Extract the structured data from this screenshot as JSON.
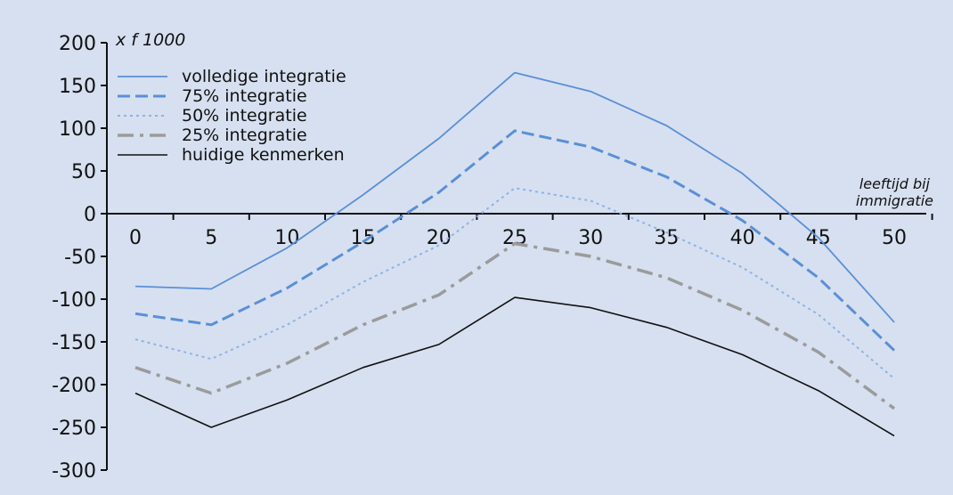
{
  "chart_data": {
    "type": "line",
    "title": "",
    "ylabel": "x f 1000",
    "xlabel": [
      "leeftijd bij",
      "immigratie"
    ],
    "x": [
      0,
      5,
      10,
      15,
      20,
      25,
      30,
      35,
      40,
      45,
      50
    ],
    "ylim": [
      -300,
      200
    ],
    "yticks": [
      200,
      150,
      100,
      50,
      0,
      -50,
      -100,
      -150,
      -200,
      -250,
      -300
    ],
    "legend_position": "top-left",
    "series": [
      {
        "name": "volledige integratie",
        "color": "#5b8fd6",
        "style": "solid",
        "values": [
          -85,
          -88,
          -40,
          22,
          88,
          165,
          143,
          103,
          47,
          -28,
          -127
        ]
      },
      {
        "name": "75% integratie",
        "color": "#5b8fd6",
        "style": "dashed",
        "values": [
          -117,
          -130,
          -87,
          -33,
          25,
          97,
          78,
          43,
          -8,
          -75,
          -160
        ]
      },
      {
        "name": "50% integratie",
        "color": "#8fb2e6",
        "style": "dotted",
        "values": [
          -147,
          -170,
          -130,
          -80,
          -37,
          30,
          15,
          -22,
          -63,
          -118,
          -193
        ]
      },
      {
        "name": "25% integratie",
        "color": "#9b9b9b",
        "style": "dashdot",
        "values": [
          -180,
          -210,
          -175,
          -130,
          -95,
          -35,
          -50,
          -75,
          -113,
          -162,
          -228
        ]
      },
      {
        "name": "huidige kenmerken",
        "color": "#111111",
        "style": "solid",
        "values": [
          -210,
          -250,
          -218,
          -180,
          -153,
          -98,
          -110,
          -133,
          -165,
          -207,
          -260
        ]
      }
    ]
  }
}
